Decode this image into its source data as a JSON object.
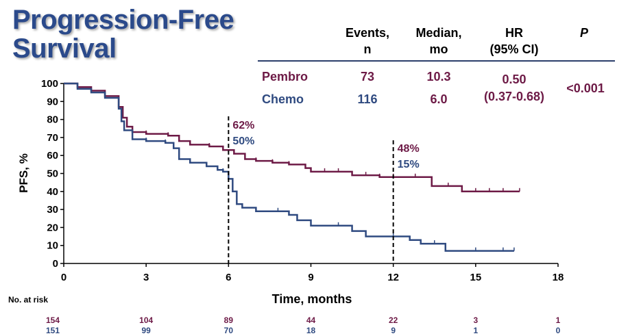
{
  "title": {
    "line1": "Progression-Free",
    "line2": "Survival"
  },
  "table": {
    "headers": {
      "events": [
        "Events,",
        "n"
      ],
      "median": [
        "Median,",
        "mo"
      ],
      "hr": [
        "HR",
        "(95% CI)"
      ],
      "p": "P"
    },
    "rows": [
      {
        "arm": "Pembro",
        "events": "73",
        "median": "10.3"
      },
      {
        "arm": "Chemo",
        "events": "116",
        "median": "6.0"
      }
    ],
    "hr_value": "0.50",
    "hr_ci": "(0.37-0.68)",
    "p_value": "<0.001"
  },
  "colors": {
    "pembro": "#6d1a46",
    "chemo": "#2f4a80",
    "axis": "#000000"
  },
  "chart_data": {
    "type": "line",
    "subtype": "kaplan-meier-step",
    "xlabel": "Time, months",
    "ylabel": "PFS, %",
    "xlim": [
      0,
      18
    ],
    "ylim": [
      0,
      100
    ],
    "xticks": [
      0,
      3,
      6,
      9,
      12,
      15,
      18
    ],
    "yticks": [
      0,
      10,
      20,
      30,
      40,
      50,
      60,
      70,
      80,
      90,
      100
    ],
    "grid": false,
    "series": [
      {
        "name": "Pembro",
        "color": "#6d1a46",
        "x": [
          0,
          0.5,
          1.0,
          1.5,
          2.0,
          2.15,
          2.3,
          2.5,
          3.0,
          3.8,
          4.2,
          4.6,
          5.3,
          5.8,
          6.2,
          6.6,
          7.0,
          7.6,
          8.2,
          8.8,
          9.0,
          9.5,
          10.0,
          10.5,
          11.0,
          11.5,
          12.0,
          12.8,
          13.4,
          14.0,
          14.5,
          15.0,
          15.5,
          16.0,
          16.6
        ],
        "y": [
          100,
          98,
          96,
          93,
          87,
          81,
          76,
          73,
          72,
          71,
          68,
          66,
          65,
          63,
          61,
          58,
          57,
          56,
          55,
          53,
          51,
          51,
          51,
          49,
          49,
          48,
          48,
          48,
          43,
          43,
          40,
          40,
          40,
          40,
          40
        ]
      },
      {
        "name": "Chemo",
        "color": "#2f4a80",
        "x": [
          0,
          0.5,
          1.0,
          1.5,
          2.0,
          2.1,
          2.2,
          2.5,
          3.0,
          3.7,
          4.0,
          4.2,
          4.6,
          5.2,
          5.6,
          5.8,
          6.0,
          6.15,
          6.3,
          6.5,
          7.0,
          7.8,
          8.2,
          8.5,
          9.0,
          10.0,
          10.5,
          11.0,
          12.0,
          12.6,
          13.0,
          13.5,
          13.9,
          15.0,
          16.0,
          16.4
        ],
        "y": [
          100,
          97,
          95,
          92,
          86,
          79,
          74,
          69,
          68,
          67,
          64,
          58,
          56,
          54,
          52,
          51,
          47,
          40,
          33,
          31,
          29,
          29,
          27,
          24,
          21,
          21,
          18,
          15,
          15,
          13,
          11,
          11,
          7,
          7,
          7,
          7
        ]
      }
    ],
    "annotations": [
      {
        "x": 6,
        "labels": [
          "62%",
          "50%"
        ]
      },
      {
        "x": 12,
        "labels": [
          "48%",
          "15%"
        ]
      }
    ],
    "at_risk": {
      "label": "No. at risk",
      "times": [
        0,
        3,
        6,
        9,
        12,
        15,
        18
      ],
      "pembro": [
        "154",
        "104",
        "89",
        "44",
        "22",
        "3",
        "1"
      ],
      "chemo": [
        "151",
        "99",
        "70",
        "18",
        "9",
        "1",
        "0"
      ]
    }
  }
}
